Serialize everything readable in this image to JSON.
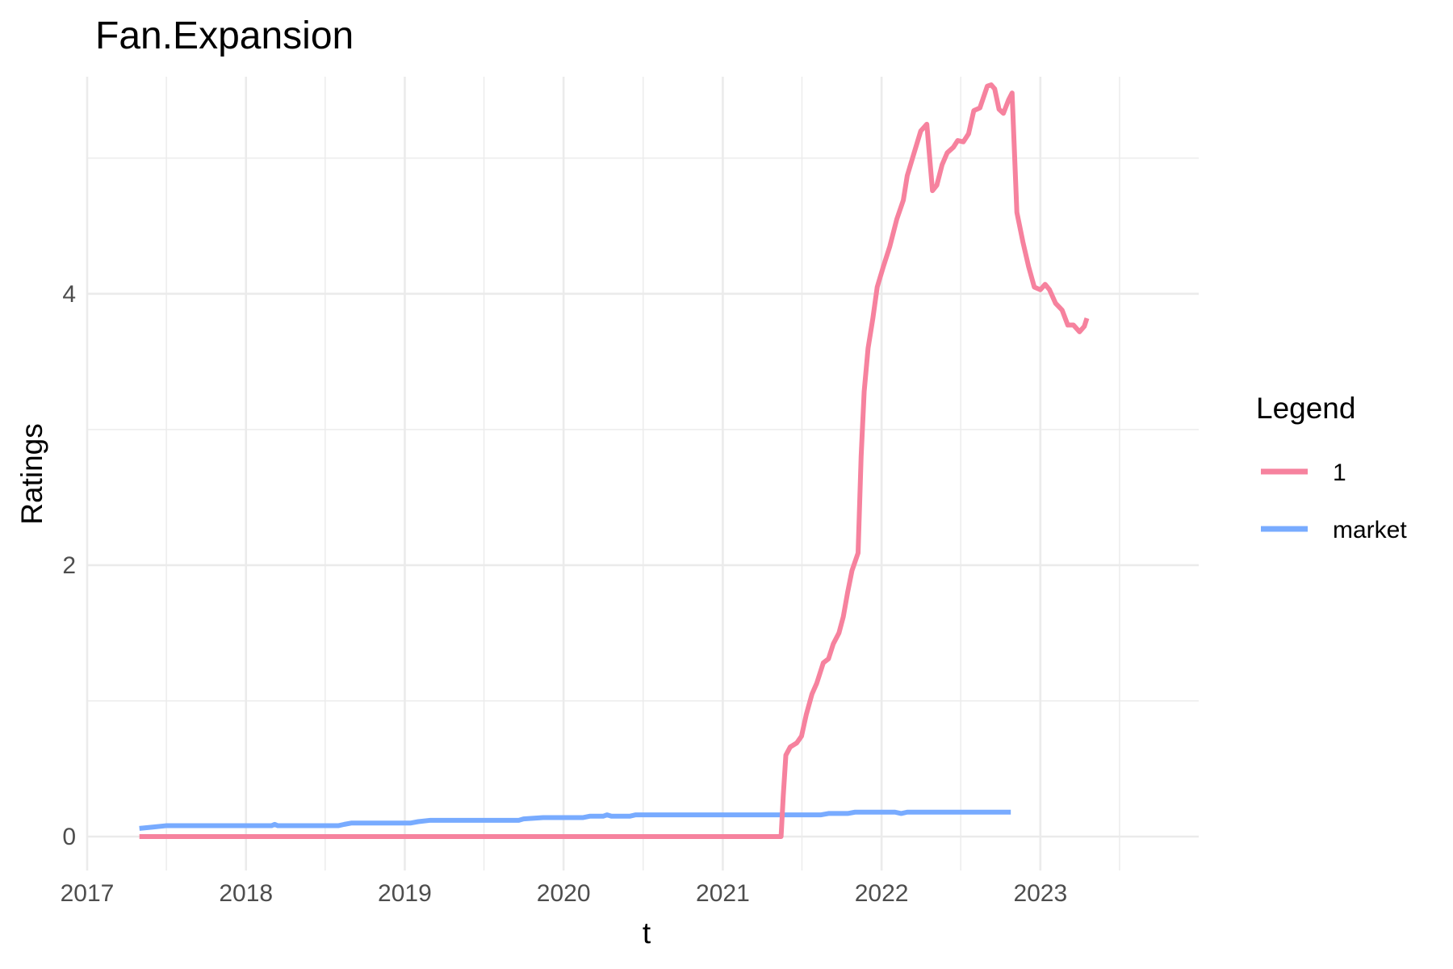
{
  "chart_data": {
    "type": "line",
    "title": "Fan.Expansion",
    "xlabel": "t",
    "ylabel": "Ratings",
    "x_ticks": [
      "2017",
      "2018",
      "2019",
      "2020",
      "2021",
      "2022",
      "2023"
    ],
    "y_ticks": [
      "0",
      "2",
      "4"
    ],
    "xlim": [
      "2017-01-01",
      "2023-12-31"
    ],
    "ylim": [
      -0.25,
      5.6
    ],
    "grid": true,
    "legend": {
      "title": "Legend",
      "position": "right"
    },
    "series": [
      {
        "name": "1",
        "color": "#F6829E",
        "points": [
          [
            "2017-05-01",
            0
          ],
          [
            "2021-05-15",
            0
          ],
          [
            "2021-05-20",
            0.3
          ],
          [
            "2021-05-26",
            0.6
          ],
          [
            "2021-06-05",
            0.66
          ],
          [
            "2021-06-20",
            0.69
          ],
          [
            "2021-07-01",
            0.74
          ],
          [
            "2021-07-12",
            0.9
          ],
          [
            "2021-07-25",
            1.05
          ],
          [
            "2021-08-05",
            1.13
          ],
          [
            "2021-08-20",
            1.28
          ],
          [
            "2021-09-01",
            1.31
          ],
          [
            "2021-09-12",
            1.42
          ],
          [
            "2021-09-25",
            1.5
          ],
          [
            "2021-10-05",
            1.62
          ],
          [
            "2021-10-15",
            1.8
          ],
          [
            "2021-10-25",
            1.96
          ],
          [
            "2021-11-08",
            2.09
          ],
          [
            "2021-11-15",
            2.8
          ],
          [
            "2021-11-22",
            3.28
          ],
          [
            "2021-12-01",
            3.6
          ],
          [
            "2021-12-12",
            3.82
          ],
          [
            "2021-12-22",
            4.05
          ],
          [
            "2022-01-05",
            4.2
          ],
          [
            "2022-01-20",
            4.35
          ],
          [
            "2022-02-05",
            4.55
          ],
          [
            "2022-02-20",
            4.69
          ],
          [
            "2022-03-01",
            4.87
          ],
          [
            "2022-03-15",
            5.02
          ],
          [
            "2022-04-01",
            5.2
          ],
          [
            "2022-04-15",
            5.25
          ],
          [
            "2022-04-28",
            4.76
          ],
          [
            "2022-05-08",
            4.8
          ],
          [
            "2022-05-20",
            4.95
          ],
          [
            "2022-06-01",
            5.04
          ],
          [
            "2022-06-15",
            5.08
          ],
          [
            "2022-06-25",
            5.13
          ],
          [
            "2022-07-08",
            5.12
          ],
          [
            "2022-07-20",
            5.18
          ],
          [
            "2022-08-01",
            5.35
          ],
          [
            "2022-08-15",
            5.37
          ],
          [
            "2022-09-01",
            5.53
          ],
          [
            "2022-09-10",
            5.54
          ],
          [
            "2022-09-18",
            5.51
          ],
          [
            "2022-09-28",
            5.36
          ],
          [
            "2022-10-08",
            5.33
          ],
          [
            "2022-10-20",
            5.43
          ],
          [
            "2022-10-28",
            5.48
          ],
          [
            "2022-11-08",
            4.6
          ],
          [
            "2022-11-22",
            4.38
          ],
          [
            "2022-12-05",
            4.2
          ],
          [
            "2022-12-18",
            4.05
          ],
          [
            "2023-01-01",
            4.03
          ],
          [
            "2023-01-12",
            4.07
          ],
          [
            "2023-01-22",
            4.03
          ],
          [
            "2023-02-05",
            3.93
          ],
          [
            "2023-02-20",
            3.88
          ],
          [
            "2023-03-05",
            3.77
          ],
          [
            "2023-03-18",
            3.77
          ],
          [
            "2023-04-01",
            3.72
          ],
          [
            "2023-04-12",
            3.76
          ],
          [
            "2023-04-18",
            3.82
          ]
        ]
      },
      {
        "name": "market",
        "color": "#78ABFF",
        "points": [
          [
            "2017-05-01",
            0.06
          ],
          [
            "2017-06-01",
            0.07
          ],
          [
            "2017-07-01",
            0.08
          ],
          [
            "2018-03-01",
            0.08
          ],
          [
            "2018-03-08",
            0.09
          ],
          [
            "2018-03-15",
            0.08
          ],
          [
            "2018-08-01",
            0.08
          ],
          [
            "2018-08-15",
            0.09
          ],
          [
            "2018-09-01",
            0.1
          ],
          [
            "2019-01-15",
            0.1
          ],
          [
            "2019-02-01",
            0.11
          ],
          [
            "2019-03-01",
            0.12
          ],
          [
            "2019-09-20",
            0.12
          ],
          [
            "2019-10-01",
            0.13
          ],
          [
            "2019-11-15",
            0.14
          ],
          [
            "2020-02-15",
            0.14
          ],
          [
            "2020-03-01",
            0.15
          ],
          [
            "2020-04-01",
            0.15
          ],
          [
            "2020-04-10",
            0.16
          ],
          [
            "2020-04-20",
            0.15
          ],
          [
            "2020-06-01",
            0.15
          ],
          [
            "2020-06-15",
            0.16
          ],
          [
            "2021-08-15",
            0.16
          ],
          [
            "2021-09-01",
            0.17
          ],
          [
            "2021-10-15",
            0.17
          ],
          [
            "2021-11-01",
            0.18
          ],
          [
            "2022-02-01",
            0.18
          ],
          [
            "2022-02-15",
            0.17
          ],
          [
            "2022-03-01",
            0.18
          ],
          [
            "2022-10-25",
            0.18
          ]
        ]
      }
    ]
  }
}
